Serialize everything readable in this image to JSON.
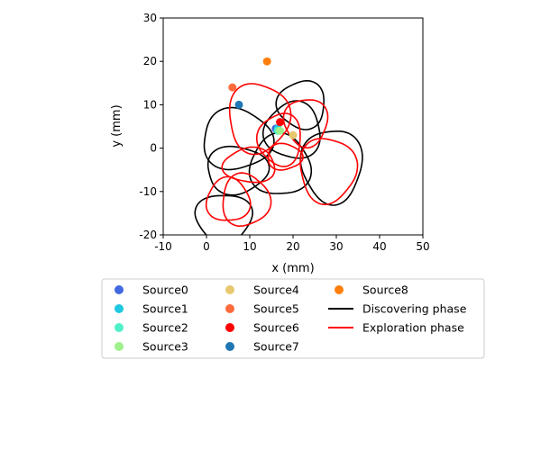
{
  "chart_data": {
    "type": "scatter",
    "title": "",
    "xlabel": "x (mm)",
    "ylabel": "y (mm)",
    "xlim": [
      -10,
      50
    ],
    "ylim": [
      -20,
      30
    ],
    "xticks": [
      -10,
      0,
      10,
      20,
      30,
      40,
      50
    ],
    "yticks": [
      -20,
      -10,
      0,
      10,
      20,
      30
    ],
    "grid": false,
    "legend_position": "bottom",
    "sources": [
      {
        "name": "Source0",
        "color": "#4169e1",
        "x": 16.0,
        "y": 4.5
      },
      {
        "name": "Source1",
        "color": "#1ec8e0",
        "x": 16.5,
        "y": 4.5
      },
      {
        "name": "Source2",
        "color": "#50f0c8",
        "x": 16.5,
        "y": 4.0
      },
      {
        "name": "Source3",
        "color": "#a0f08c",
        "x": 17.0,
        "y": 4.0
      },
      {
        "name": "Source4",
        "color": "#e8c86e",
        "x": 20.0,
        "y": 3.0
      },
      {
        "name": "Source5",
        "color": "#ff6b3c",
        "x": 6.0,
        "y": 14.0
      },
      {
        "name": "Source6",
        "color": "#ff0000",
        "x": 17.0,
        "y": 6.0
      },
      {
        "name": "Source7",
        "color": "#1f77b4",
        "x": 7.5,
        "y": 10.0
      },
      {
        "name": "Source8",
        "color": "#ff7f0e",
        "x": 14.0,
        "y": 20.0
      }
    ],
    "trajectories": [
      {
        "name": "Discovering phase",
        "color": "#000000",
        "loops": [
          {
            "cx": 4,
            "cy": -16,
            "rx": 6.5,
            "ry": 5.5
          },
          {
            "cx": 7,
            "cy": -5,
            "rx": 7,
            "ry": 5.5
          },
          {
            "cx": 7,
            "cy": 2,
            "rx": 8,
            "ry": 7
          },
          {
            "cx": 17,
            "cy": -4,
            "rx": 7,
            "ry": 7
          },
          {
            "cx": 20,
            "cy": 4,
            "rx": 6.5,
            "ry": 6.5
          },
          {
            "cx": 22,
            "cy": 10,
            "rx": 5.5,
            "ry": 5.5
          },
          {
            "cx": 29,
            "cy": -4,
            "rx": 7,
            "ry": 8.5
          }
        ]
      },
      {
        "name": "Exploration phase",
        "color": "#ff0000",
        "loops": [
          {
            "cx": 12,
            "cy": 7,
            "rx": 7,
            "ry": 8
          },
          {
            "cx": 9,
            "cy": -12,
            "rx": 5.5,
            "ry": 6
          },
          {
            "cx": 5,
            "cy": -12,
            "rx": 5,
            "ry": 5
          },
          {
            "cx": 10,
            "cy": -4,
            "rx": 6,
            "ry": 4
          },
          {
            "cx": 17,
            "cy": 2,
            "rx": 5,
            "ry": 6
          },
          {
            "cx": 23,
            "cy": 6,
            "rx": 5,
            "ry": 5.5
          },
          {
            "cx": 28,
            "cy": -5,
            "rx": 6.5,
            "ry": 7.5
          },
          {
            "cx": 18,
            "cy": -2,
            "rx": 4,
            "ry": 3
          }
        ]
      }
    ]
  }
}
